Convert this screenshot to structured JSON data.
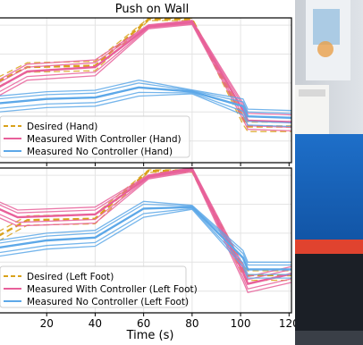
{
  "chart_data": [
    {
      "type": "line",
      "title": "Push on Wall",
      "xlabel": "",
      "ylabel": "",
      "xlim": [
        0,
        121
      ],
      "ylim": [
        0,
        1
      ],
      "grid": true,
      "legend_position": "bottom-left",
      "x_ticks": [],
      "series": [
        {
          "name": "Desired (Hand)",
          "color": "#D9A21B",
          "style": "dashed",
          "x": [
            0,
            12,
            40,
            62,
            80,
            101,
            103,
            121
          ],
          "y": [
            0.56,
            0.66,
            0.67,
            0.99,
            0.99,
            0.3,
            0.25,
            0.25
          ]
        },
        {
          "name": "Measured With Controller (Hand)",
          "color": "#E8609A",
          "style": "solid",
          "x": [
            0,
            12,
            40,
            62,
            80,
            101,
            103,
            121
          ],
          "y": [
            0.52,
            0.63,
            0.66,
            0.94,
            0.97,
            0.36,
            0.29,
            0.28
          ]
        },
        {
          "name": "Measured No Controller (Hand)",
          "color": "#5DA8E8",
          "style": "solid",
          "x": [
            0,
            20,
            40,
            58,
            80,
            101,
            103,
            121
          ],
          "y": [
            0.41,
            0.44,
            0.45,
            0.52,
            0.49,
            0.39,
            0.32,
            0.31
          ]
        }
      ]
    },
    {
      "type": "line",
      "title": "",
      "xlabel": "Time (s)",
      "ylabel": "",
      "xlim": [
        0,
        121
      ],
      "ylim": [
        0,
        1
      ],
      "grid": true,
      "legend_position": "bottom-left",
      "x_ticks": [
        20,
        40,
        60,
        80,
        100,
        120
      ],
      "series": [
        {
          "name": "Desired (Left Foot)",
          "color": "#D9A21B",
          "style": "dashed",
          "x": [
            0,
            12,
            40,
            62,
            80,
            101,
            103,
            121
          ],
          "y": [
            0.53,
            0.64,
            0.65,
            0.98,
            0.98,
            0.3,
            0.26,
            0.26
          ]
        },
        {
          "name": "Measured With Controller (Left Foot)",
          "color": "#E8609A",
          "style": "solid",
          "x": [
            0,
            8,
            40,
            62,
            80,
            101,
            103,
            121
          ],
          "y": [
            0.72,
            0.66,
            0.68,
            0.94,
            0.99,
            0.28,
            0.2,
            0.27
          ]
        },
        {
          "name": "Measured No Controller (Left Foot)",
          "color": "#5DA8E8",
          "style": "solid",
          "x": [
            0,
            20,
            40,
            60,
            80,
            101,
            103,
            121
          ],
          "y": [
            0.45,
            0.5,
            0.52,
            0.72,
            0.73,
            0.38,
            0.3,
            0.3
          ]
        }
      ]
    }
  ]
}
